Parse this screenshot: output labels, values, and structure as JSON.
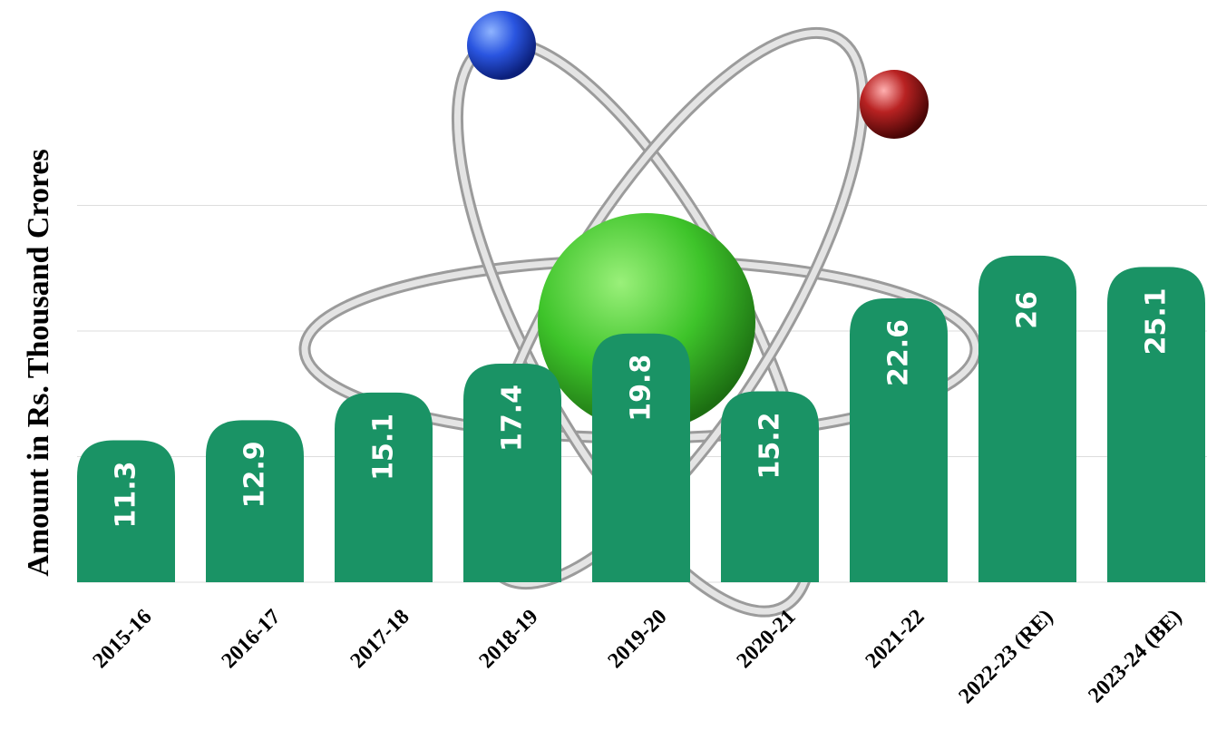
{
  "chart_data": {
    "type": "bar",
    "ylabel": "Amount in Rs. Thousand Crores",
    "xlabel": "",
    "title": "",
    "categories": [
      "2015-16",
      "2016-17",
      "2017-18",
      "2018-19",
      "2019-20",
      "2020-21",
      "2021-22",
      "2022-23 (RE)",
      "2023-24 (BE)"
    ],
    "values": [
      11.3,
      12.9,
      15.1,
      17.4,
      19.8,
      15.2,
      22.6,
      26,
      25.1
    ],
    "ylim": [
      0,
      30
    ],
    "grid": true,
    "bar_color": "#1a9365",
    "label_color": "#ffffff",
    "grid_color": "#dddddd",
    "background_decoration": "atom-illustration"
  }
}
